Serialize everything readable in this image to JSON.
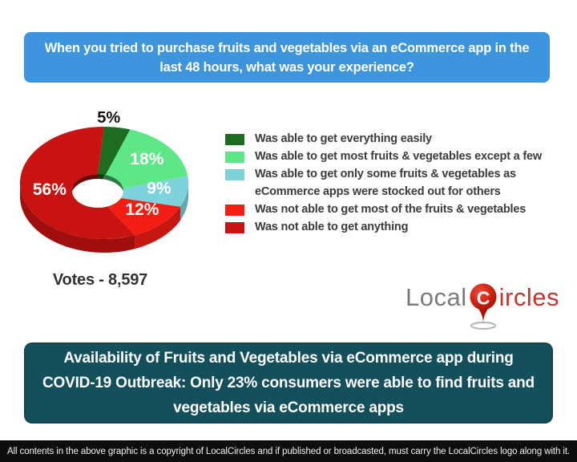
{
  "header": {
    "question": "When you tried to purchase fruits and vegetables via an eCommerce app in the last 48 hours, what was your experience?"
  },
  "chart_data": {
    "type": "pie",
    "style": "3d-donut",
    "title": "",
    "labels": [
      "Was able to get everything easily",
      "Was able to get most fruits & vegetables except a few",
      "Was able to get only some fruits & vegetables as eCommerce apps were stocked out for others",
      "Was not able to get most of the fruits & vegetables",
      "Was not able to get anything"
    ],
    "values": [
      5,
      18,
      9,
      12,
      56
    ],
    "value_labels": [
      "5%",
      "18%",
      "9%",
      "12%",
      "56%"
    ],
    "colors": [
      "#1e6b22",
      "#5fe787",
      "#7dd2dc",
      "#f41d14",
      "#c81311"
    ],
    "legend_position": "right",
    "start_angle_deg": 0,
    "direction": "clockwise",
    "votes_label": "Votes - 8,597"
  },
  "logo": {
    "part1": "Local",
    "part2": "ircles",
    "pin_letter": "C"
  },
  "summary_banner": {
    "text": "Availability of Fruits and Vegetables via eCommerce app during COVID-19 Outbreak: Only 23% consumers were able to find fruits and vegetables via eCommerce apps"
  },
  "footer": {
    "copyright": "All contents in the above graphic is a copyright of LocalCircles and if published or broadcasted, must carry the LocalCircles logo along with it."
  },
  "colors": {
    "header_bg": "#3d96dd",
    "summary_bg": "#14505c",
    "footer_bg": "#0d0d0d",
    "logo_gray": "#7b7b7b",
    "logo_red": "#c5352c",
    "pin_red": "#cf2415",
    "pin_red_dark": "#a01106"
  }
}
